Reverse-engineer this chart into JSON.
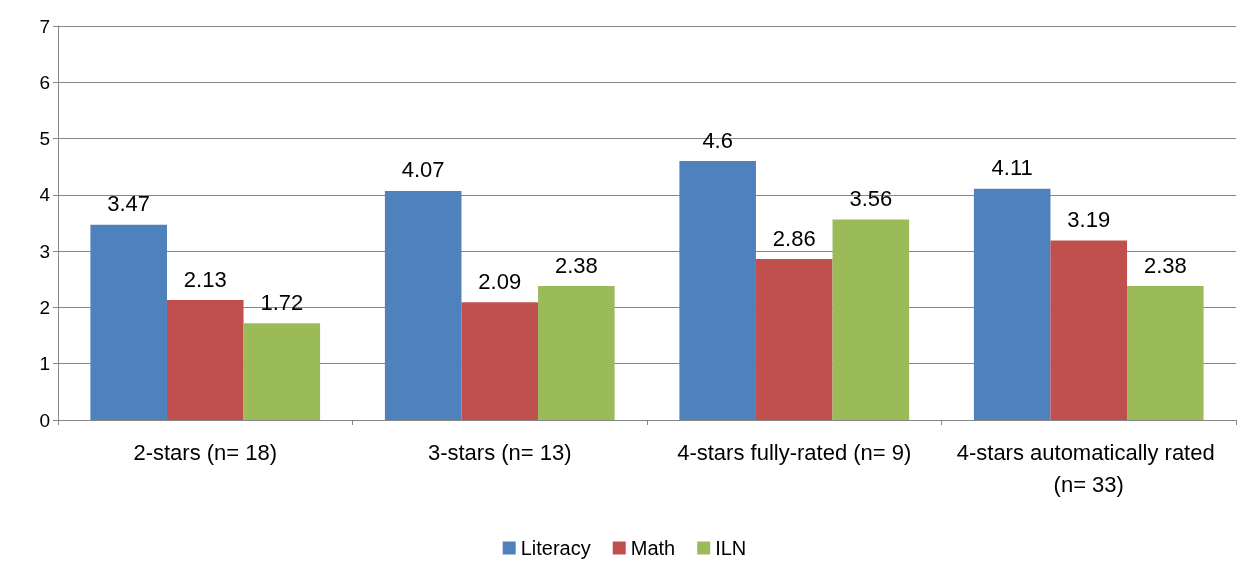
{
  "chart_data": {
    "type": "bar",
    "categories": [
      "2-stars (n= 18)",
      "3-stars (n= 13)",
      "4-stars fully-rated (n= 9)",
      "4-stars automatically rated (n= 33)"
    ],
    "series": [
      {
        "name": "Literacy",
        "color": "#4f81bd",
        "values": [
          3.47,
          4.07,
          4.6,
          4.11
        ]
      },
      {
        "name": "Math",
        "color": "#c0504d",
        "values": [
          2.13,
          2.09,
          2.86,
          3.19
        ]
      },
      {
        "name": "ILN",
        "color": "#9bbb59",
        "values": [
          1.72,
          2.38,
          3.56,
          2.38
        ]
      }
    ],
    "ylim": [
      0,
      7
    ],
    "yticks": [
      0,
      1,
      2,
      3,
      4,
      5,
      6,
      7
    ],
    "grid": "y",
    "legend": "bottom",
    "data_labels": true
  }
}
